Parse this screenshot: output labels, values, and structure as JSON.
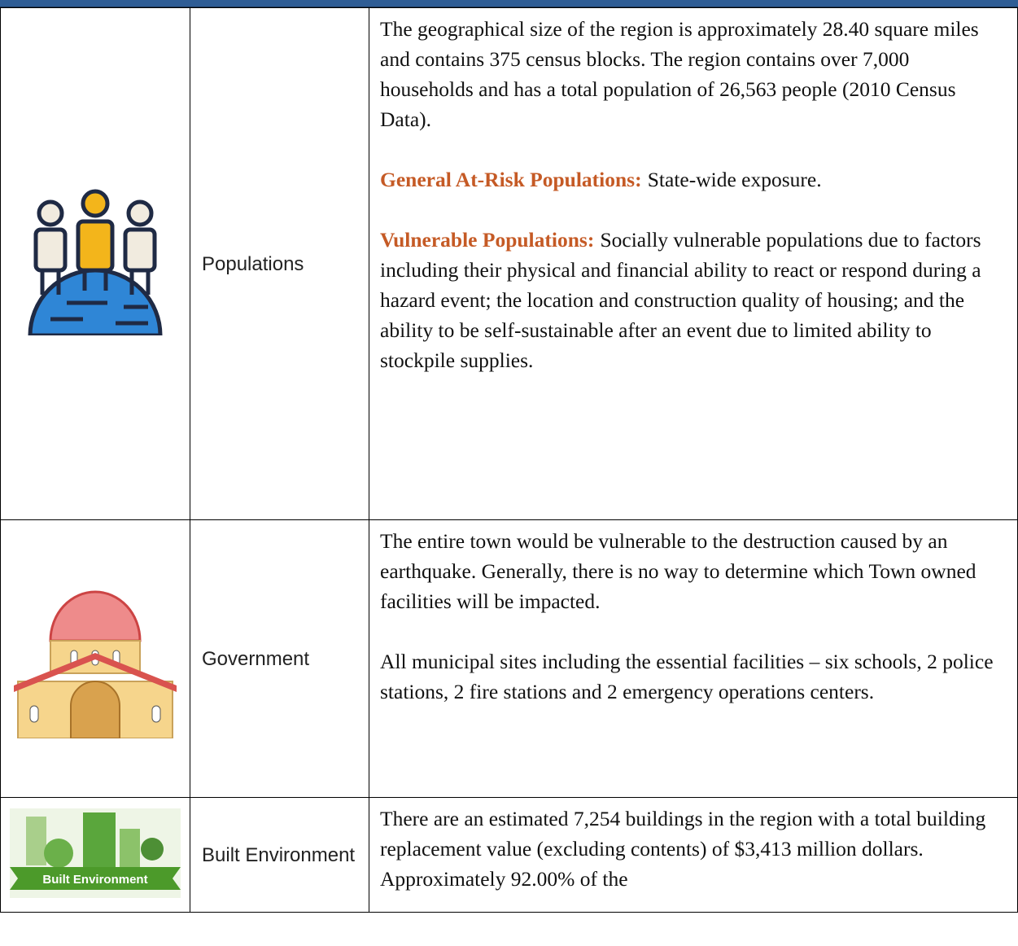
{
  "table": {
    "rows": [
      {
        "label": "Populations",
        "paragraphs": [
          {
            "text": "The geographical size of the region is approximately 28.40 square miles and contains 375 census blocks. The region contains over 7,000 households and has a total population of 26,563 people (2010 Census Data)."
          },
          {
            "heading": "General At-Risk Populations:",
            "text": "State-wide exposure."
          },
          {
            "heading": "Vulnerable Populations:",
            "text": "Socially vulnerable populations due to factors including their physical and financial ability to react or respond during a hazard event; the location and construction quality of housing; and the ability to be self-sustainable after an event due to limited ability to stockpile supplies."
          }
        ]
      },
      {
        "label": "Government",
        "paragraphs": [
          {
            "text": "The entire town would be vulnerable to the destruction caused by an earthquake. Generally, there is no way to determine which Town owned facilities will be impacted."
          },
          {
            "text": "All municipal sites including the essential facilities – six schools, 2 police stations, 2 fire stations and 2 emergency operations centers."
          }
        ]
      },
      {
        "label": "Built Environment",
        "icon_caption": "Built Environment",
        "paragraphs": [
          {
            "text": "There are an estimated 7,254 buildings in the region with a total building replacement value (excluding contents) of $3,413 million dollars. Approximately 92.00% of the"
          }
        ]
      }
    ]
  }
}
